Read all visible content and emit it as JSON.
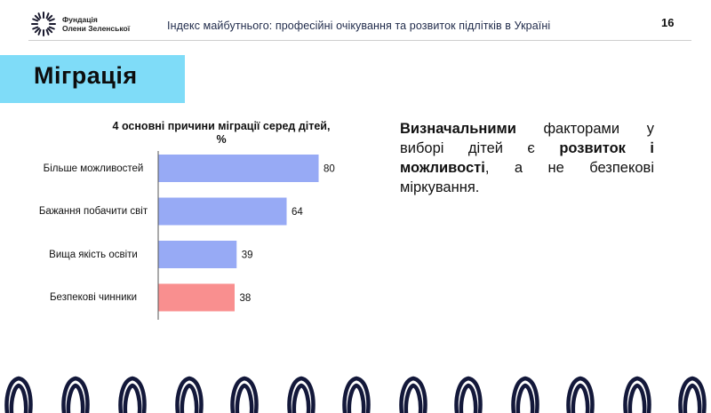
{
  "header": {
    "logo_line1": "Фундація",
    "logo_line2": "Олени Зеленської",
    "title": "Індекс майбутнього: професійні очікування та розвиток підлітків в Україні",
    "page_number": "16"
  },
  "section": {
    "title": "Міграція"
  },
  "colors": {
    "banner": "#7fdcf8",
    "bar_default": "#97aaf5",
    "bar_highlight": "#f98f8f",
    "axis": "#555555"
  },
  "chart_data": {
    "type": "bar",
    "orientation": "horizontal",
    "title": "4 основні причини міграції серед дітей,",
    "unit": "%",
    "categories": [
      "Більше можливостей",
      "Бажання побачити світ",
      "Вища якість освіти",
      "Безпекові чинники"
    ],
    "values": [
      80,
      64,
      39,
      38
    ],
    "highlight": [
      false,
      false,
      false,
      true
    ],
    "xlim": [
      0,
      80
    ],
    "grid": false
  },
  "text_block": {
    "bold1": "Визначальними",
    "plain1": " факторами у виборі дітей є ",
    "bold2": "розвиток і можливості",
    "plain2": ", а не безпекові міркування."
  }
}
